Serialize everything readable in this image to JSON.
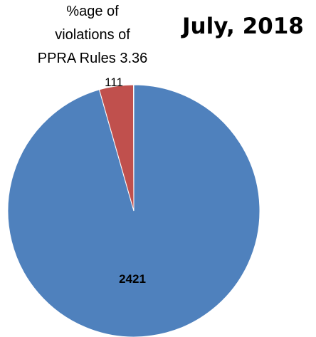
{
  "chart_data": {
    "type": "pie",
    "title": "July, 2018",
    "subtitle_lines": [
      "%age of",
      "violations of",
      "PPRA Rules 3.36"
    ],
    "slices": [
      {
        "value": 2421,
        "label": "2421",
        "color": "#4f81bd"
      },
      {
        "value": 111,
        "label": "111",
        "color": "#c0504d"
      },
      {
        "value": 1,
        "label": "",
        "color": "#9bbb59"
      }
    ],
    "start_angle_deg": 0,
    "direction": "clockwise",
    "legend": "none"
  }
}
